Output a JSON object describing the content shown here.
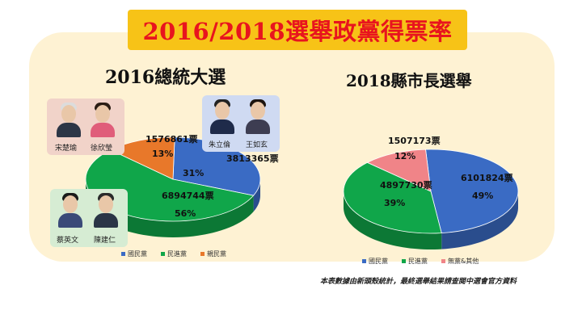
{
  "banner_title": "2016/2018選舉政黨得票率",
  "chart_data": [
    {
      "type": "pie",
      "title": "2016總統大選",
      "slices": [
        {
          "name": "國民黨",
          "votes": "3813365票",
          "percent": 31,
          "pct_label": "31%",
          "color": "#3a6bc4"
        },
        {
          "name": "民進黨",
          "votes": "6894744票",
          "percent": 56,
          "pct_label": "56%",
          "color": "#10a64a"
        },
        {
          "name": "親民黨",
          "votes": "1576861票",
          "percent": 13,
          "pct_label": "13%",
          "color": "#e8782a"
        }
      ],
      "legend": [
        "國民黨",
        "民進黨",
        "親民黨"
      ]
    },
    {
      "type": "pie",
      "title": "2018縣市長選舉",
      "slices": [
        {
          "name": "國民黨",
          "votes": "6101824票",
          "percent": 49,
          "pct_label": "49%",
          "color": "#3a6bc4"
        },
        {
          "name": "民進黨",
          "votes": "4897730票",
          "percent": 39,
          "pct_label": "39%",
          "color": "#10a64a"
        },
        {
          "name": "無黨&其他",
          "votes": "1507173票",
          "percent": 12,
          "pct_label": "12%",
          "color": "#f08488"
        }
      ],
      "legend": [
        "國民黨",
        "民進黨",
        "無黨&其他"
      ]
    }
  ],
  "candidates": {
    "pfp": [
      "宋楚瑜",
      "徐欣瑩"
    ],
    "kmt": [
      "朱立倫",
      "王如玄"
    ],
    "dpp": [
      "蔡英文",
      "陳建仁"
    ]
  },
  "footnote": "本表數據由新頭殼統計，最終選舉結果請查閱中選會官方資料"
}
